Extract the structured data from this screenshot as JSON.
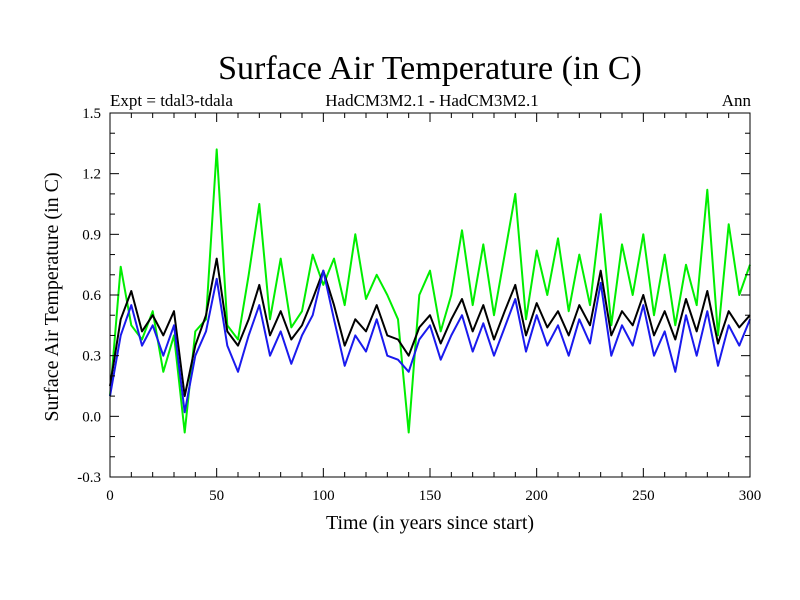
{
  "chart_data": {
    "type": "line",
    "title": "Surface Air Temperature (in C)",
    "subtitle_left": "Expt = tdal3-tdala",
    "subtitle_center": "HadCM3M2.1 - HadCM3M2.1",
    "subtitle_right": "Ann",
    "xlabel": "Time (in years since start)",
    "ylabel": "Surface Air Temperature (in C)",
    "xlim": [
      0,
      300
    ],
    "ylim": [
      -0.3,
      1.5
    ],
    "xticks": [
      0,
      50,
      100,
      150,
      200,
      250,
      300
    ],
    "xtick_labels": [
      "0",
      "50",
      "100",
      "150",
      "200",
      "250",
      "300"
    ],
    "yticks": [
      -0.3,
      0.0,
      0.3,
      0.6,
      0.9,
      1.2,
      1.5
    ],
    "ytick_labels": [
      "-0.3",
      "0.0",
      "0.3",
      "0.6",
      "0.9",
      "1.2",
      "1.5"
    ],
    "x": [
      0,
      5,
      10,
      15,
      20,
      25,
      30,
      35,
      40,
      45,
      50,
      55,
      60,
      65,
      70,
      75,
      80,
      85,
      90,
      95,
      100,
      105,
      110,
      115,
      120,
      125,
      130,
      135,
      140,
      145,
      150,
      155,
      160,
      165,
      170,
      175,
      180,
      185,
      190,
      195,
      200,
      205,
      210,
      215,
      220,
      225,
      230,
      235,
      240,
      245,
      250,
      255,
      260,
      265,
      270,
      275,
      280,
      285,
      290,
      295,
      300
    ],
    "series": [
      {
        "name": "green",
        "color": "#00ee00",
        "values": [
          0.1,
          0.74,
          0.45,
          0.38,
          0.52,
          0.22,
          0.4,
          -0.08,
          0.42,
          0.48,
          1.32,
          0.45,
          0.38,
          0.7,
          1.05,
          0.48,
          0.78,
          0.44,
          0.52,
          0.8,
          0.65,
          0.78,
          0.55,
          0.9,
          0.58,
          0.7,
          0.6,
          0.48,
          -0.08,
          0.6,
          0.72,
          0.42,
          0.6,
          0.92,
          0.55,
          0.85,
          0.5,
          0.8,
          1.1,
          0.48,
          0.82,
          0.6,
          0.88,
          0.52,
          0.8,
          0.55,
          1.0,
          0.45,
          0.85,
          0.6,
          0.9,
          0.5,
          0.8,
          0.45,
          0.75,
          0.55,
          1.12,
          0.4,
          0.95,
          0.6,
          0.75
        ]
      },
      {
        "name": "black",
        "color": "#000000",
        "values": [
          0.15,
          0.48,
          0.62,
          0.42,
          0.5,
          0.4,
          0.52,
          0.1,
          0.35,
          0.5,
          0.78,
          0.42,
          0.35,
          0.48,
          0.65,
          0.4,
          0.52,
          0.38,
          0.45,
          0.58,
          0.72,
          0.55,
          0.35,
          0.48,
          0.42,
          0.55,
          0.4,
          0.38,
          0.3,
          0.44,
          0.5,
          0.36,
          0.48,
          0.58,
          0.42,
          0.55,
          0.38,
          0.52,
          0.65,
          0.4,
          0.56,
          0.44,
          0.52,
          0.4,
          0.55,
          0.45,
          0.72,
          0.4,
          0.52,
          0.45,
          0.6,
          0.4,
          0.52,
          0.38,
          0.58,
          0.42,
          0.62,
          0.36,
          0.52,
          0.44,
          0.5
        ]
      },
      {
        "name": "blue",
        "color": "#1a1aee",
        "values": [
          0.1,
          0.4,
          0.55,
          0.35,
          0.45,
          0.3,
          0.45,
          0.02,
          0.3,
          0.42,
          0.68,
          0.35,
          0.22,
          0.4,
          0.55,
          0.3,
          0.42,
          0.26,
          0.4,
          0.5,
          0.72,
          0.48,
          0.25,
          0.4,
          0.32,
          0.48,
          0.3,
          0.28,
          0.22,
          0.38,
          0.45,
          0.28,
          0.4,
          0.5,
          0.32,
          0.46,
          0.3,
          0.44,
          0.58,
          0.32,
          0.5,
          0.35,
          0.45,
          0.3,
          0.48,
          0.36,
          0.66,
          0.3,
          0.45,
          0.35,
          0.55,
          0.3,
          0.42,
          0.22,
          0.5,
          0.3,
          0.52,
          0.25,
          0.45,
          0.35,
          0.48
        ]
      }
    ]
  }
}
